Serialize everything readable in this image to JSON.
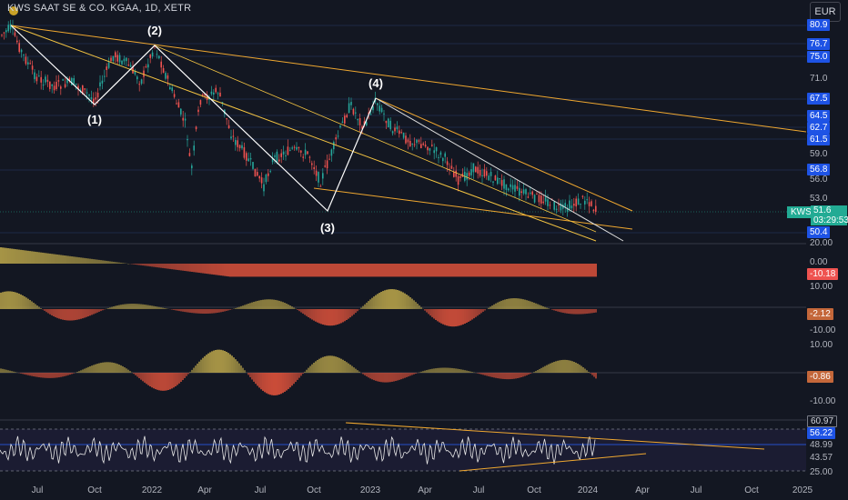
{
  "header": {
    "symbol_title": "KWS SAAT SE & CO. KGAA, 1D, XETR",
    "currency": "EUR"
  },
  "wave_labels": [
    "(1)",
    "(2)",
    "(3)",
    "(4)"
  ],
  "price_axis": {
    "ticks": [
      "80.9",
      "71.0",
      "59.0",
      "56.0",
      "53.0",
      "20.00"
    ],
    "badges": [
      "76.7",
      "75.0",
      "67.5",
      "64.5",
      "62.7",
      "61.5",
      "56.8",
      "50.4"
    ],
    "last_price": "51.6",
    "countdown": "03:29:53",
    "ticker": "KWS"
  },
  "indicator1": {
    "ticks": [
      "0.00",
      "10.00"
    ],
    "value": "-10.18"
  },
  "indicator2": {
    "ticks": [
      "-10.00",
      "10.00"
    ],
    "value": "-2.12"
  },
  "indicator3": {
    "ticks": [
      "-10.00"
    ],
    "value": "-0.86"
  },
  "rsi": {
    "ticks": [
      "60.97",
      "25.00"
    ],
    "values": [
      "56.22",
      "48.99",
      "43.57"
    ]
  },
  "time_axis": [
    "Jul",
    "Oct",
    "2022",
    "Apr",
    "Jul",
    "Oct",
    "2023",
    "Apr",
    "Jul",
    "Oct",
    "2024",
    "Apr",
    "Jul",
    "Oct",
    "2025"
  ],
  "colors": {
    "background": "#131722",
    "up": "#26a69a",
    "down": "#ef5350",
    "trendline": "#f5c542",
    "channel": "#f0a830",
    "wave": "#ffffff",
    "badge_blue": "#1e53e5"
  }
}
